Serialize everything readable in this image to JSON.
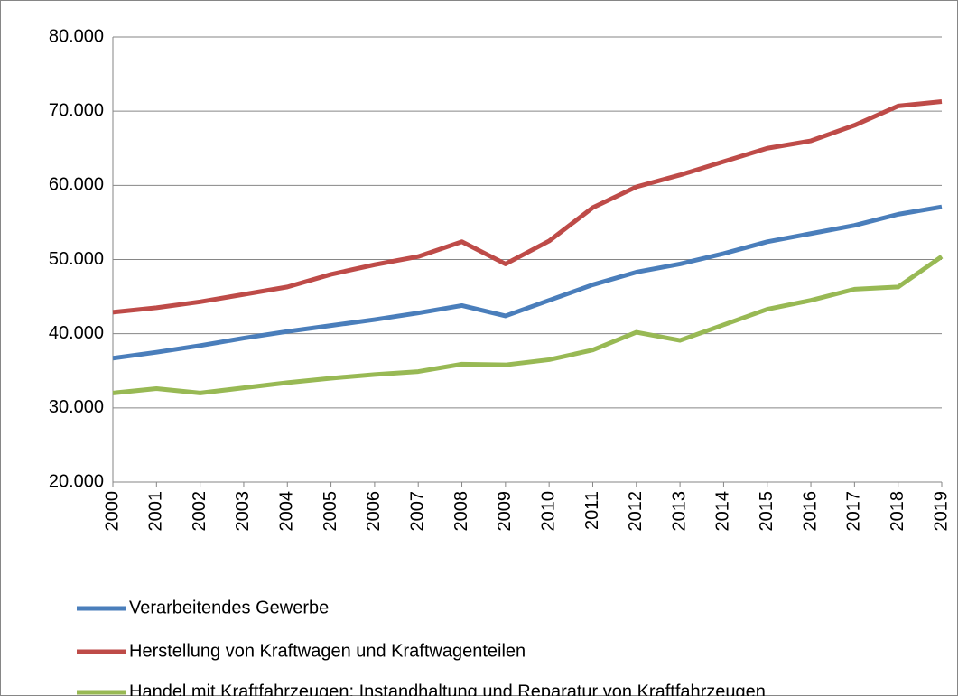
{
  "chart_data": {
    "type": "line",
    "categories": [
      "2000",
      "2001",
      "2002",
      "2003",
      "2004",
      "2005",
      "2006",
      "2007",
      "2008",
      "2009",
      "2010",
      "2011",
      "2012",
      "2013",
      "2014",
      "2015",
      "2016",
      "2017",
      "2018",
      "2019"
    ],
    "series": [
      {
        "name": "Verarbeitendes Gewerbe",
        "color": "#4a7ebb",
        "values": [
          36700,
          37500,
          38400,
          39400,
          40300,
          41100,
          41900,
          42800,
          43800,
          42400,
          44500,
          46600,
          48300,
          49400,
          50800,
          52400,
          53500,
          54600,
          56100,
          57100
        ]
      },
      {
        "name": "Herstellung von Kraftwagen und Kraftwagenteilen",
        "color": "#be4b48",
        "values": [
          42900,
          43500,
          44300,
          45300,
          46300,
          48000,
          49300,
          50400,
          52400,
          49400,
          52500,
          57000,
          59800,
          61400,
          63200,
          65000,
          66000,
          68100,
          70700,
          71300
        ]
      },
      {
        "name": "Handel mit Kraftfahrzeugen; Instandhaltung und Reparatur von Kraftfahrzeugen",
        "color": "#98b954",
        "values": [
          32000,
          32600,
          32000,
          32700,
          33400,
          34000,
          34500,
          34900,
          35900,
          35800,
          36500,
          37800,
          40200,
          39100,
          41200,
          43300,
          44500,
          46000,
          46300,
          50400
        ]
      }
    ],
    "ylim": [
      20000,
      80000
    ],
    "yticks": [
      {
        "value": 20000,
        "label": "20.000"
      },
      {
        "value": 30000,
        "label": "30.000"
      },
      {
        "value": 40000,
        "label": "40.000"
      },
      {
        "value": 50000,
        "label": "50.000"
      },
      {
        "value": 60000,
        "label": "60.000"
      },
      {
        "value": 70000,
        "label": "70.000"
      },
      {
        "value": 80000,
        "label": "80.000"
      }
    ],
    "grid": true
  }
}
